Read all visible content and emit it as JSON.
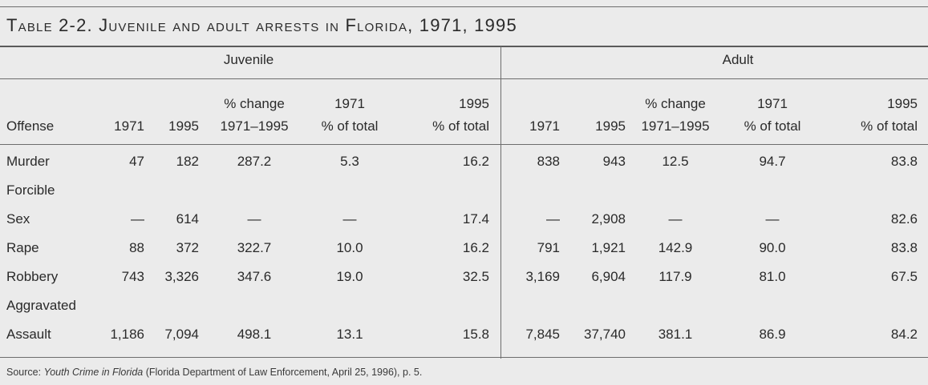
{
  "title": {
    "prefix": "Table 2-2. Juvenile and adult arrests in Florida, ",
    "years": "1971, 1995"
  },
  "groups": {
    "juvenile": "Juvenile",
    "adult": "Adult"
  },
  "headers": {
    "offense": "Offense",
    "y1971": "1971",
    "y1995": "1995",
    "pct_change_1": "% change",
    "pct_change_2": "1971–1995",
    "share1971_1": "1971",
    "share1995_1": "1995",
    "share_2": "% of total"
  },
  "rows": [
    {
      "offense": "Murder",
      "j": [
        "47",
        "182",
        "287.2",
        "5.3",
        "16.2"
      ],
      "a": [
        "838",
        "943",
        "12.5",
        "94.7",
        "83.8"
      ]
    },
    {
      "offense": "Forcible"
    },
    {
      "offense": "Sex",
      "j": [
        "—",
        "614",
        "—",
        "—",
        "17.4"
      ],
      "a": [
        "—",
        "2,908",
        "—",
        "—",
        "82.6"
      ]
    },
    {
      "offense": "Rape",
      "j": [
        "88",
        "372",
        "322.7",
        "10.0",
        "16.2"
      ],
      "a": [
        "791",
        "1,921",
        "142.9",
        "90.0",
        "83.8"
      ]
    },
    {
      "offense": "Robbery",
      "j": [
        "743",
        "3,326",
        "347.6",
        "19.0",
        "32.5"
      ],
      "a": [
        "3,169",
        "6,904",
        "117.9",
        "81.0",
        "67.5"
      ]
    },
    {
      "offense": "Aggravated"
    },
    {
      "offense": "Assault",
      "j": [
        "1,186",
        "7,094",
        "498.1",
        "13.1",
        "15.8"
      ],
      "a": [
        "7,845",
        "37,740",
        "381.1",
        "86.9",
        "84.2"
      ]
    }
  ],
  "source": {
    "label": "Source: ",
    "work": "Youth Crime in Florida",
    "rest": " (Florida Department of Law Enforcement, April 25, 1996), p. 5."
  }
}
